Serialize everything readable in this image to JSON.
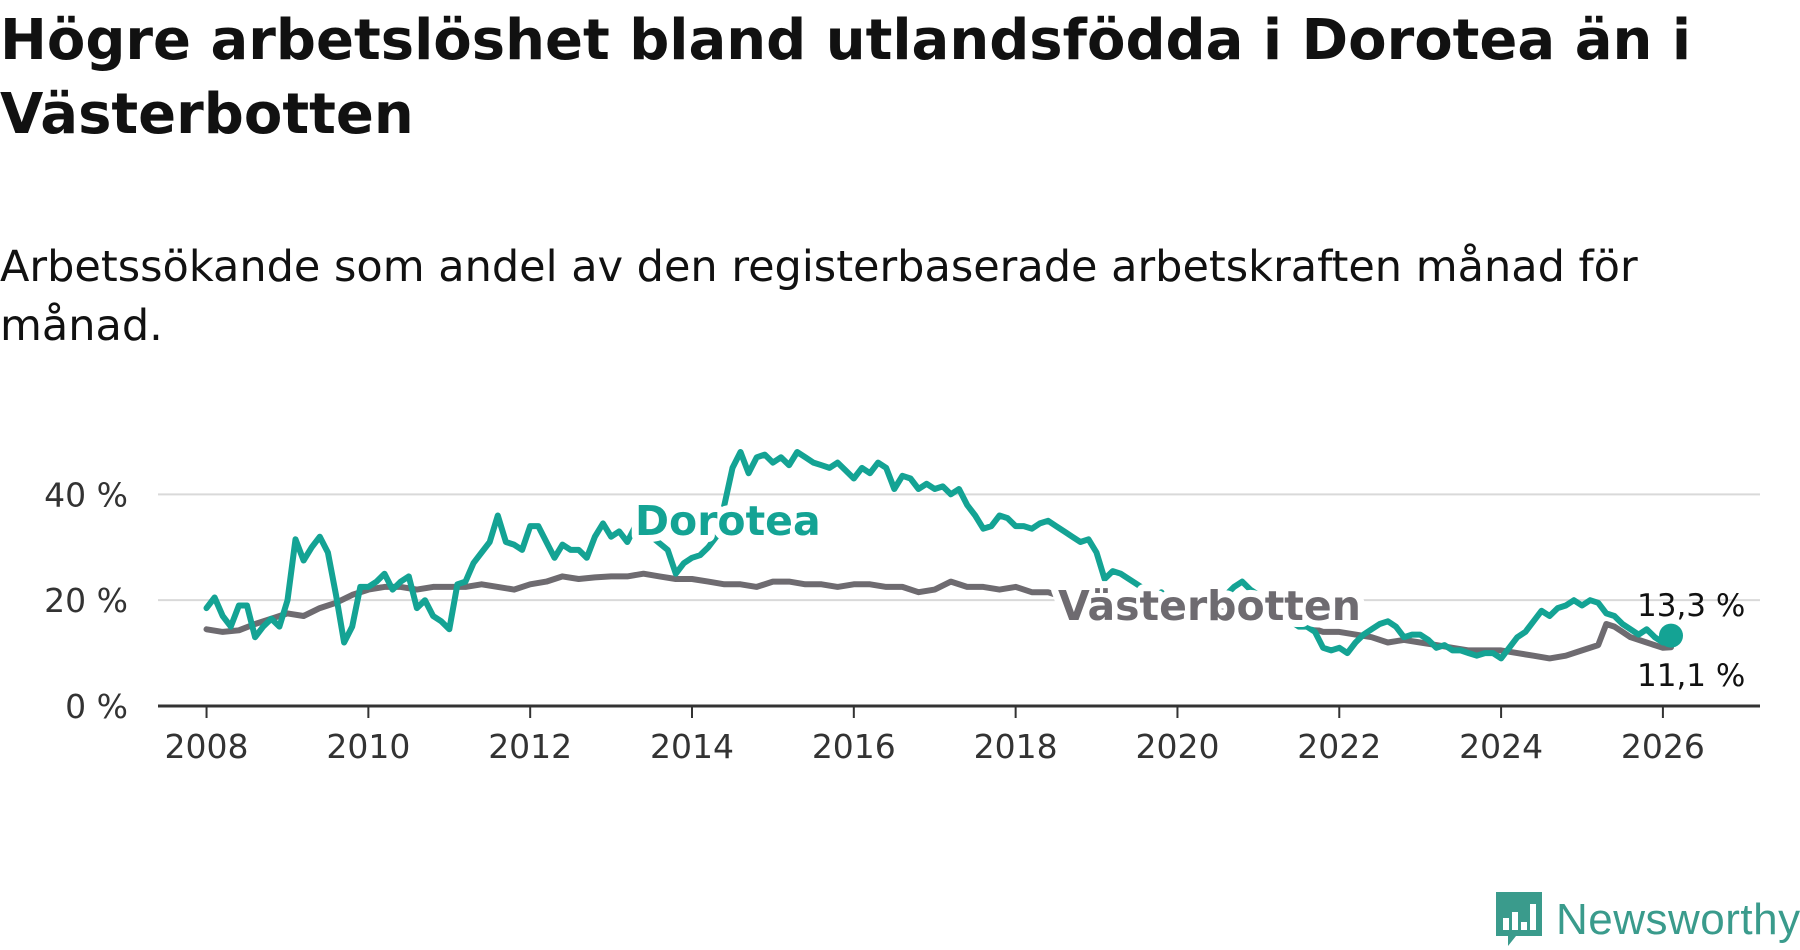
{
  "title": "Högre arbetslöshet bland utlandsfödda i Dorotea än i Västerbotten",
  "subtitle": "Arbetssökande som andel av den registerbaserade arbetskraften månad för månad.",
  "logo": {
    "text": "Newsworthy",
    "icon": "bar-chart-logo-icon"
  },
  "colors": {
    "dorotea": "#14a394",
    "vasterbotten": "#6e6b70",
    "grid": "#d9d9d9",
    "axis": "#333333"
  },
  "chart_data": {
    "type": "line",
    "x_axis": {
      "min": 2007.4,
      "max": 2027.2,
      "ticks": [
        2008,
        2010,
        2012,
        2014,
        2016,
        2018,
        2020,
        2022,
        2024,
        2026
      ]
    },
    "y_axis": {
      "min": 0,
      "max": 48,
      "ticks": [
        0,
        20,
        40
      ],
      "tick_labels": [
        "0 %",
        "20 %",
        "40 %"
      ]
    },
    "grid": true,
    "series": [
      {
        "name": "Dorotea",
        "label": "Dorotea",
        "end_label": "13,3 %",
        "points": [
          [
            2008.0,
            18.5
          ],
          [
            2008.1,
            20.5
          ],
          [
            2008.2,
            17
          ],
          [
            2008.3,
            15
          ],
          [
            2008.4,
            19
          ],
          [
            2008.5,
            19
          ],
          [
            2008.6,
            13
          ],
          [
            2008.7,
            15
          ],
          [
            2008.8,
            16.5
          ],
          [
            2008.9,
            15
          ],
          [
            2009.0,
            20
          ],
          [
            2009.1,
            31.5
          ],
          [
            2009.2,
            27.5
          ],
          [
            2009.3,
            30
          ],
          [
            2009.4,
            32
          ],
          [
            2009.5,
            29
          ],
          [
            2009.6,
            21
          ],
          [
            2009.7,
            12
          ],
          [
            2009.8,
            15
          ],
          [
            2009.9,
            22.5
          ],
          [
            2010.0,
            22.5
          ],
          [
            2010.1,
            23.5
          ],
          [
            2010.2,
            25
          ],
          [
            2010.3,
            22
          ],
          [
            2010.4,
            23.5
          ],
          [
            2010.5,
            24.5
          ],
          [
            2010.6,
            18.5
          ],
          [
            2010.7,
            20
          ],
          [
            2010.8,
            17
          ],
          [
            2010.9,
            16
          ],
          [
            2011.0,
            14.5
          ],
          [
            2011.1,
            23
          ],
          [
            2011.2,
            23.5
          ],
          [
            2011.3,
            27
          ],
          [
            2011.4,
            29
          ],
          [
            2011.5,
            31
          ],
          [
            2011.6,
            36
          ],
          [
            2011.7,
            31
          ],
          [
            2011.8,
            30.5
          ],
          [
            2011.9,
            29.5
          ],
          [
            2012.0,
            34
          ],
          [
            2012.1,
            34
          ],
          [
            2012.2,
            31
          ],
          [
            2012.3,
            28
          ],
          [
            2012.4,
            30.5
          ],
          [
            2012.5,
            29.5
          ],
          [
            2012.6,
            29.5
          ],
          [
            2012.7,
            28
          ],
          [
            2012.8,
            32
          ],
          [
            2012.9,
            34.5
          ],
          [
            2013.0,
            32
          ],
          [
            2013.1,
            33
          ],
          [
            2013.2,
            31
          ],
          [
            2013.3,
            34
          ],
          [
            2013.4,
            32
          ],
          [
            2013.5,
            32
          ],
          [
            2013.7,
            29.5
          ],
          [
            2013.8,
            25
          ],
          [
            2013.9,
            27
          ],
          [
            2014.0,
            28
          ],
          [
            2014.1,
            28.5
          ],
          [
            2014.2,
            30
          ],
          [
            2014.3,
            32
          ],
          [
            2014.4,
            38
          ],
          [
            2014.5,
            45
          ],
          [
            2014.6,
            48
          ],
          [
            2014.7,
            44
          ],
          [
            2014.8,
            47
          ],
          [
            2014.9,
            47.5
          ],
          [
            2015.0,
            46
          ],
          [
            2015.1,
            47
          ],
          [
            2015.2,
            45.5
          ],
          [
            2015.3,
            48
          ],
          [
            2015.4,
            47
          ],
          [
            2015.5,
            46
          ],
          [
            2015.6,
            45.5
          ],
          [
            2015.7,
            45
          ],
          [
            2015.8,
            46
          ],
          [
            2015.9,
            44.5
          ],
          [
            2016.0,
            43
          ],
          [
            2016.1,
            45
          ],
          [
            2016.2,
            44
          ],
          [
            2016.3,
            46
          ],
          [
            2016.4,
            45
          ],
          [
            2016.5,
            41
          ],
          [
            2016.6,
            43.5
          ],
          [
            2016.7,
            43
          ],
          [
            2016.8,
            41
          ],
          [
            2016.9,
            42
          ],
          [
            2017.0,
            41
          ],
          [
            2017.1,
            41.5
          ],
          [
            2017.2,
            40
          ],
          [
            2017.3,
            41
          ],
          [
            2017.4,
            38
          ],
          [
            2017.5,
            36
          ],
          [
            2017.6,
            33.5
          ],
          [
            2017.7,
            34
          ],
          [
            2017.8,
            36
          ],
          [
            2017.9,
            35.5
          ],
          [
            2018.0,
            34
          ],
          [
            2018.1,
            34
          ],
          [
            2018.2,
            33.5
          ],
          [
            2018.3,
            34.5
          ],
          [
            2018.4,
            35
          ],
          [
            2018.5,
            34
          ],
          [
            2018.6,
            33
          ],
          [
            2018.7,
            32
          ],
          [
            2018.8,
            31
          ],
          [
            2018.9,
            31.5
          ],
          [
            2019.0,
            29
          ],
          [
            2019.1,
            24
          ],
          [
            2019.2,
            25.5
          ],
          [
            2019.3,
            25
          ],
          [
            2019.4,
            24
          ],
          [
            2019.5,
            23
          ],
          [
            2019.6,
            22
          ],
          [
            2019.7,
            20
          ],
          [
            2019.8,
            21.5
          ],
          [
            2019.9,
            19
          ],
          [
            2020.0,
            18
          ],
          [
            2020.1,
            19
          ],
          [
            2020.2,
            21
          ],
          [
            2020.3,
            20
          ],
          [
            2020.4,
            19
          ],
          [
            2020.5,
            18.5
          ],
          [
            2020.6,
            21
          ],
          [
            2020.7,
            22.5
          ],
          [
            2020.8,
            23.5
          ],
          [
            2020.9,
            22
          ],
          [
            2021.0,
            21
          ],
          [
            2021.1,
            20
          ],
          [
            2021.2,
            19
          ],
          [
            2021.3,
            18
          ],
          [
            2021.4,
            16
          ],
          [
            2021.5,
            15
          ],
          [
            2021.6,
            15
          ],
          [
            2021.7,
            14
          ],
          [
            2021.8,
            11
          ],
          [
            2021.9,
            10.5
          ],
          [
            2022.0,
            11
          ],
          [
            2022.1,
            10
          ],
          [
            2022.2,
            12
          ],
          [
            2022.3,
            13.5
          ],
          [
            2022.4,
            14.5
          ],
          [
            2022.5,
            15.5
          ],
          [
            2022.6,
            16
          ],
          [
            2022.7,
            15
          ],
          [
            2022.8,
            13
          ],
          [
            2022.9,
            13.5
          ],
          [
            2023.0,
            13.5
          ],
          [
            2023.1,
            12.5
          ],
          [
            2023.2,
            11
          ],
          [
            2023.3,
            11.5
          ],
          [
            2023.4,
            10.5
          ],
          [
            2023.5,
            10.5
          ],
          [
            2023.6,
            10
          ],
          [
            2023.7,
            9.5
          ],
          [
            2023.8,
            10
          ],
          [
            2023.9,
            10
          ],
          [
            2024.0,
            9
          ],
          [
            2024.1,
            11
          ],
          [
            2024.2,
            13
          ],
          [
            2024.3,
            14
          ],
          [
            2024.4,
            16
          ],
          [
            2024.5,
            18
          ],
          [
            2024.6,
            17
          ],
          [
            2024.7,
            18.5
          ],
          [
            2024.8,
            19
          ],
          [
            2024.9,
            20
          ],
          [
            2025.0,
            19
          ],
          [
            2025.1,
            20
          ],
          [
            2025.2,
            19.5
          ],
          [
            2025.3,
            17.5
          ],
          [
            2025.4,
            17
          ],
          [
            2025.5,
            15.5
          ],
          [
            2025.6,
            14.5
          ],
          [
            2025.7,
            13.5
          ],
          [
            2025.8,
            14.5
          ],
          [
            2025.9,
            13
          ],
          [
            2026.0,
            12
          ],
          [
            2026.1,
            13.3
          ]
        ]
      },
      {
        "name": "Västerbotten",
        "label": "Västerbotten",
        "end_label": "11,1 %",
        "points": [
          [
            2008.0,
            14.5
          ],
          [
            2008.2,
            14
          ],
          [
            2008.4,
            14.3
          ],
          [
            2008.6,
            15.5
          ],
          [
            2008.8,
            16.5
          ],
          [
            2009.0,
            17.5
          ],
          [
            2009.2,
            17
          ],
          [
            2009.4,
            18.5
          ],
          [
            2009.6,
            19.5
          ],
          [
            2009.8,
            21
          ],
          [
            2010.0,
            22
          ],
          [
            2010.2,
            22.5
          ],
          [
            2010.4,
            22.5
          ],
          [
            2010.6,
            22
          ],
          [
            2010.8,
            22.5
          ],
          [
            2011.0,
            22.5
          ],
          [
            2011.2,
            22.5
          ],
          [
            2011.4,
            23
          ],
          [
            2011.6,
            22.5
          ],
          [
            2011.8,
            22
          ],
          [
            2012.0,
            23
          ],
          [
            2012.2,
            23.5
          ],
          [
            2012.4,
            24.5
          ],
          [
            2012.6,
            24
          ],
          [
            2012.8,
            24.3
          ],
          [
            2013.0,
            24.5
          ],
          [
            2013.2,
            24.5
          ],
          [
            2013.4,
            25
          ],
          [
            2013.6,
            24.5
          ],
          [
            2013.8,
            24
          ],
          [
            2014.0,
            24
          ],
          [
            2014.2,
            23.5
          ],
          [
            2014.4,
            23
          ],
          [
            2014.6,
            23
          ],
          [
            2014.8,
            22.5
          ],
          [
            2015.0,
            23.5
          ],
          [
            2015.2,
            23.5
          ],
          [
            2015.4,
            23
          ],
          [
            2015.6,
            23
          ],
          [
            2015.8,
            22.5
          ],
          [
            2016.0,
            23
          ],
          [
            2016.2,
            23
          ],
          [
            2016.4,
            22.5
          ],
          [
            2016.6,
            22.5
          ],
          [
            2016.8,
            21.5
          ],
          [
            2017.0,
            22
          ],
          [
            2017.2,
            23.5
          ],
          [
            2017.4,
            22.5
          ],
          [
            2017.6,
            22.5
          ],
          [
            2017.8,
            22
          ],
          [
            2018.0,
            22.5
          ],
          [
            2018.2,
            21.5
          ],
          [
            2018.4,
            21.5
          ],
          [
            2018.6,
            20.5
          ],
          [
            2018.8,
            20
          ],
          [
            2019.0,
            19.5
          ],
          [
            2019.2,
            19
          ],
          [
            2019.4,
            19
          ],
          [
            2019.6,
            18.5
          ],
          [
            2019.8,
            18.5
          ],
          [
            2020.0,
            18.5
          ],
          [
            2020.2,
            18.5
          ],
          [
            2020.4,
            18.5
          ],
          [
            2020.6,
            18
          ],
          [
            2020.8,
            17.5
          ],
          [
            2021.0,
            17
          ],
          [
            2021.2,
            16.5
          ],
          [
            2021.4,
            16
          ],
          [
            2021.6,
            15
          ],
          [
            2021.8,
            14
          ],
          [
            2022.0,
            14
          ],
          [
            2022.2,
            13.5
          ],
          [
            2022.4,
            13
          ],
          [
            2022.6,
            12
          ],
          [
            2022.8,
            12.5
          ],
          [
            2023.0,
            12
          ],
          [
            2023.2,
            11.5
          ],
          [
            2023.4,
            11
          ],
          [
            2023.6,
            10.5
          ],
          [
            2023.8,
            10.5
          ],
          [
            2024.0,
            10.5
          ],
          [
            2024.2,
            10
          ],
          [
            2024.4,
            9.5
          ],
          [
            2024.6,
            9
          ],
          [
            2024.8,
            9.5
          ],
          [
            2025.0,
            10.5
          ],
          [
            2025.2,
            11.5
          ],
          [
            2025.3,
            15.5
          ],
          [
            2025.4,
            15
          ],
          [
            2025.5,
            14
          ],
          [
            2025.6,
            13
          ],
          [
            2025.8,
            12
          ],
          [
            2026.0,
            11
          ],
          [
            2026.1,
            11.1
          ]
        ]
      }
    ]
  }
}
